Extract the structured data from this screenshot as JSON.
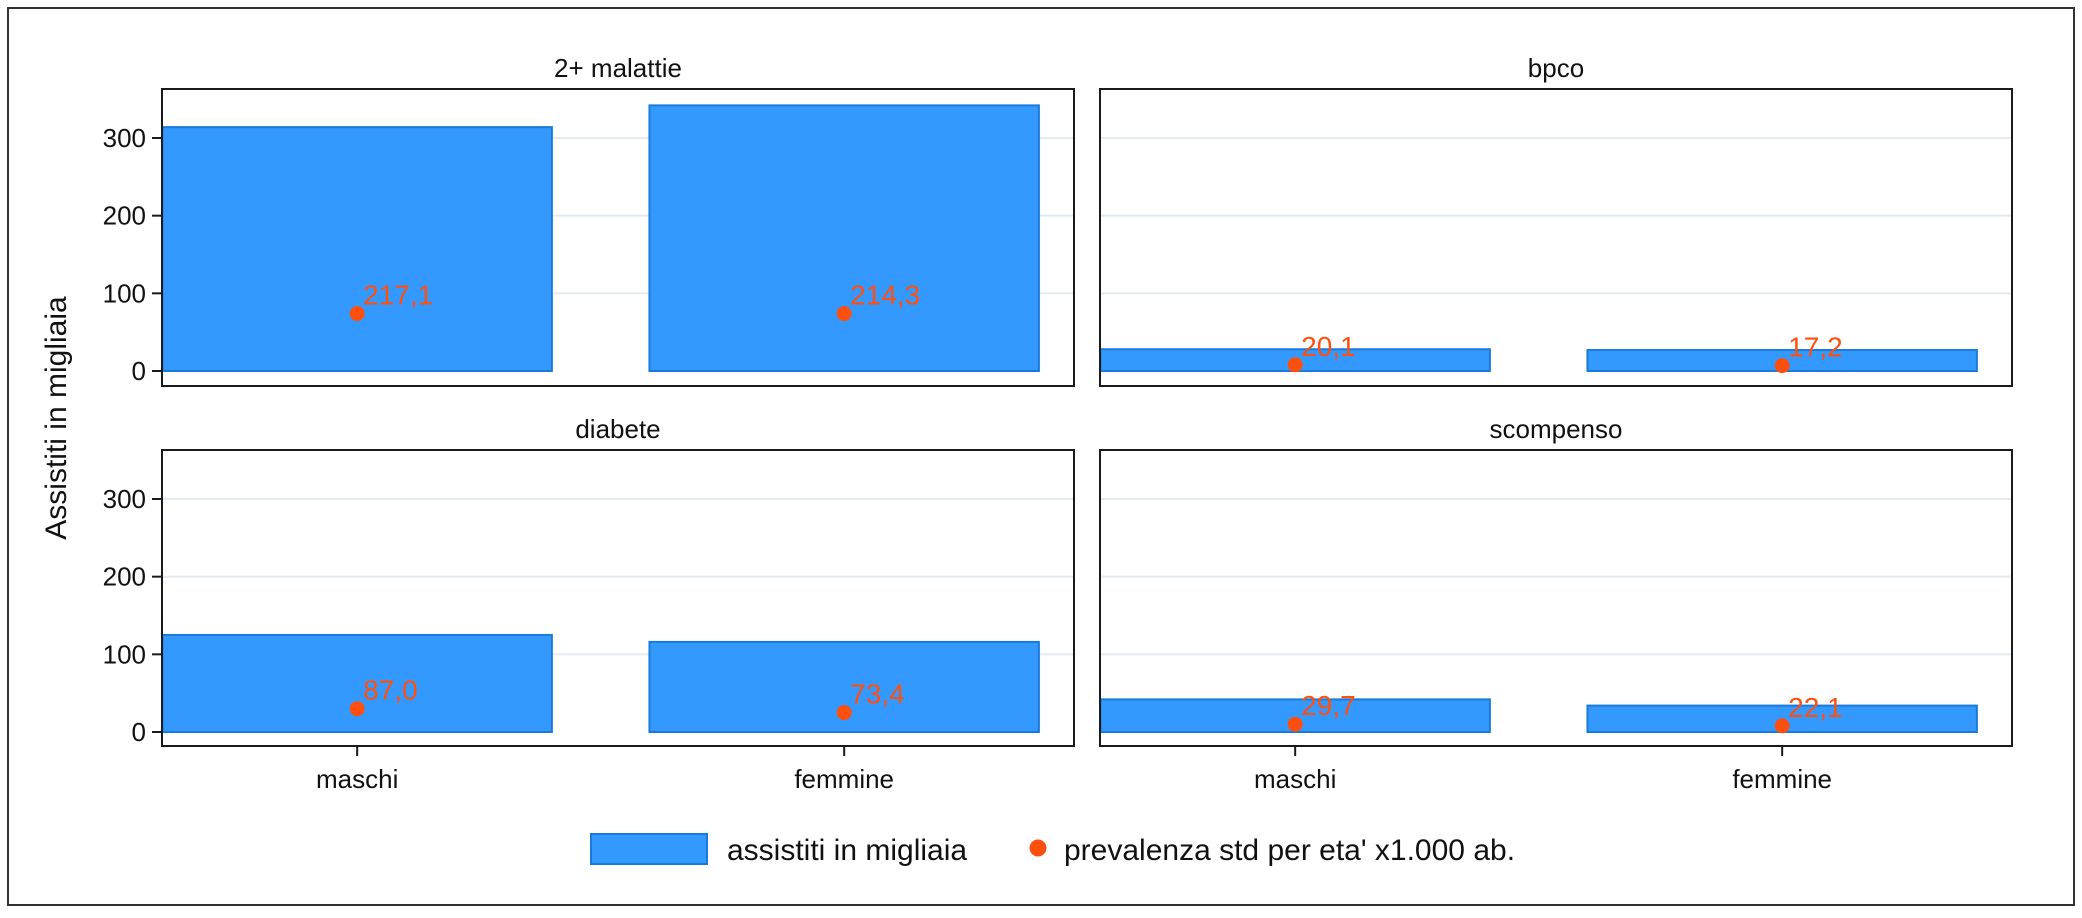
{
  "colors": {
    "bar": "#3399ff",
    "bar_stroke": "#1a7ad9",
    "point": "#ff4f0f",
    "label": "#ff4f0f",
    "grid": "#e3ebf1",
    "frame": "#1a1a1a",
    "text": "#111111"
  },
  "chart_data": {
    "type": "bar",
    "ylabel": "Assistiti in migliaia",
    "ylim": [
      0,
      360
    ],
    "yticks": [
      "0",
      "100",
      "200",
      "300"
    ],
    "categories": [
      "maschi",
      "femmine"
    ],
    "legend": {
      "position": "bottom",
      "bar_label": "assistiti in migliaia",
      "point_label": "prevalenza std per eta' x1.000 ab."
    },
    "panels": [
      {
        "title": "2+ malattie",
        "assistiti": [
          314,
          342
        ],
        "prevalenza": [
          217.1,
          214.3
        ],
        "prevalenza_labels": [
          "217,1",
          "214,3"
        ],
        "point_y": [
          74,
          74
        ]
      },
      {
        "title": "bpco",
        "assistiti": [
          28,
          27
        ],
        "prevalenza": [
          20.1,
          17.2
        ],
        "prevalenza_labels": [
          "20,1",
          "17,2"
        ],
        "point_y": [
          8,
          7
        ]
      },
      {
        "title": "diabete",
        "assistiti": [
          125,
          116
        ],
        "prevalenza": [
          87.0,
          73.4
        ],
        "prevalenza_labels": [
          "87,0",
          "73,4"
        ],
        "point_y": [
          30,
          25
        ]
      },
      {
        "title": "scompenso",
        "assistiti": [
          42,
          34
        ],
        "prevalenza": [
          29.7,
          22.1
        ],
        "prevalenza_labels": [
          "29,7",
          "22,1"
        ],
        "point_y": [
          10,
          8
        ]
      }
    ]
  }
}
